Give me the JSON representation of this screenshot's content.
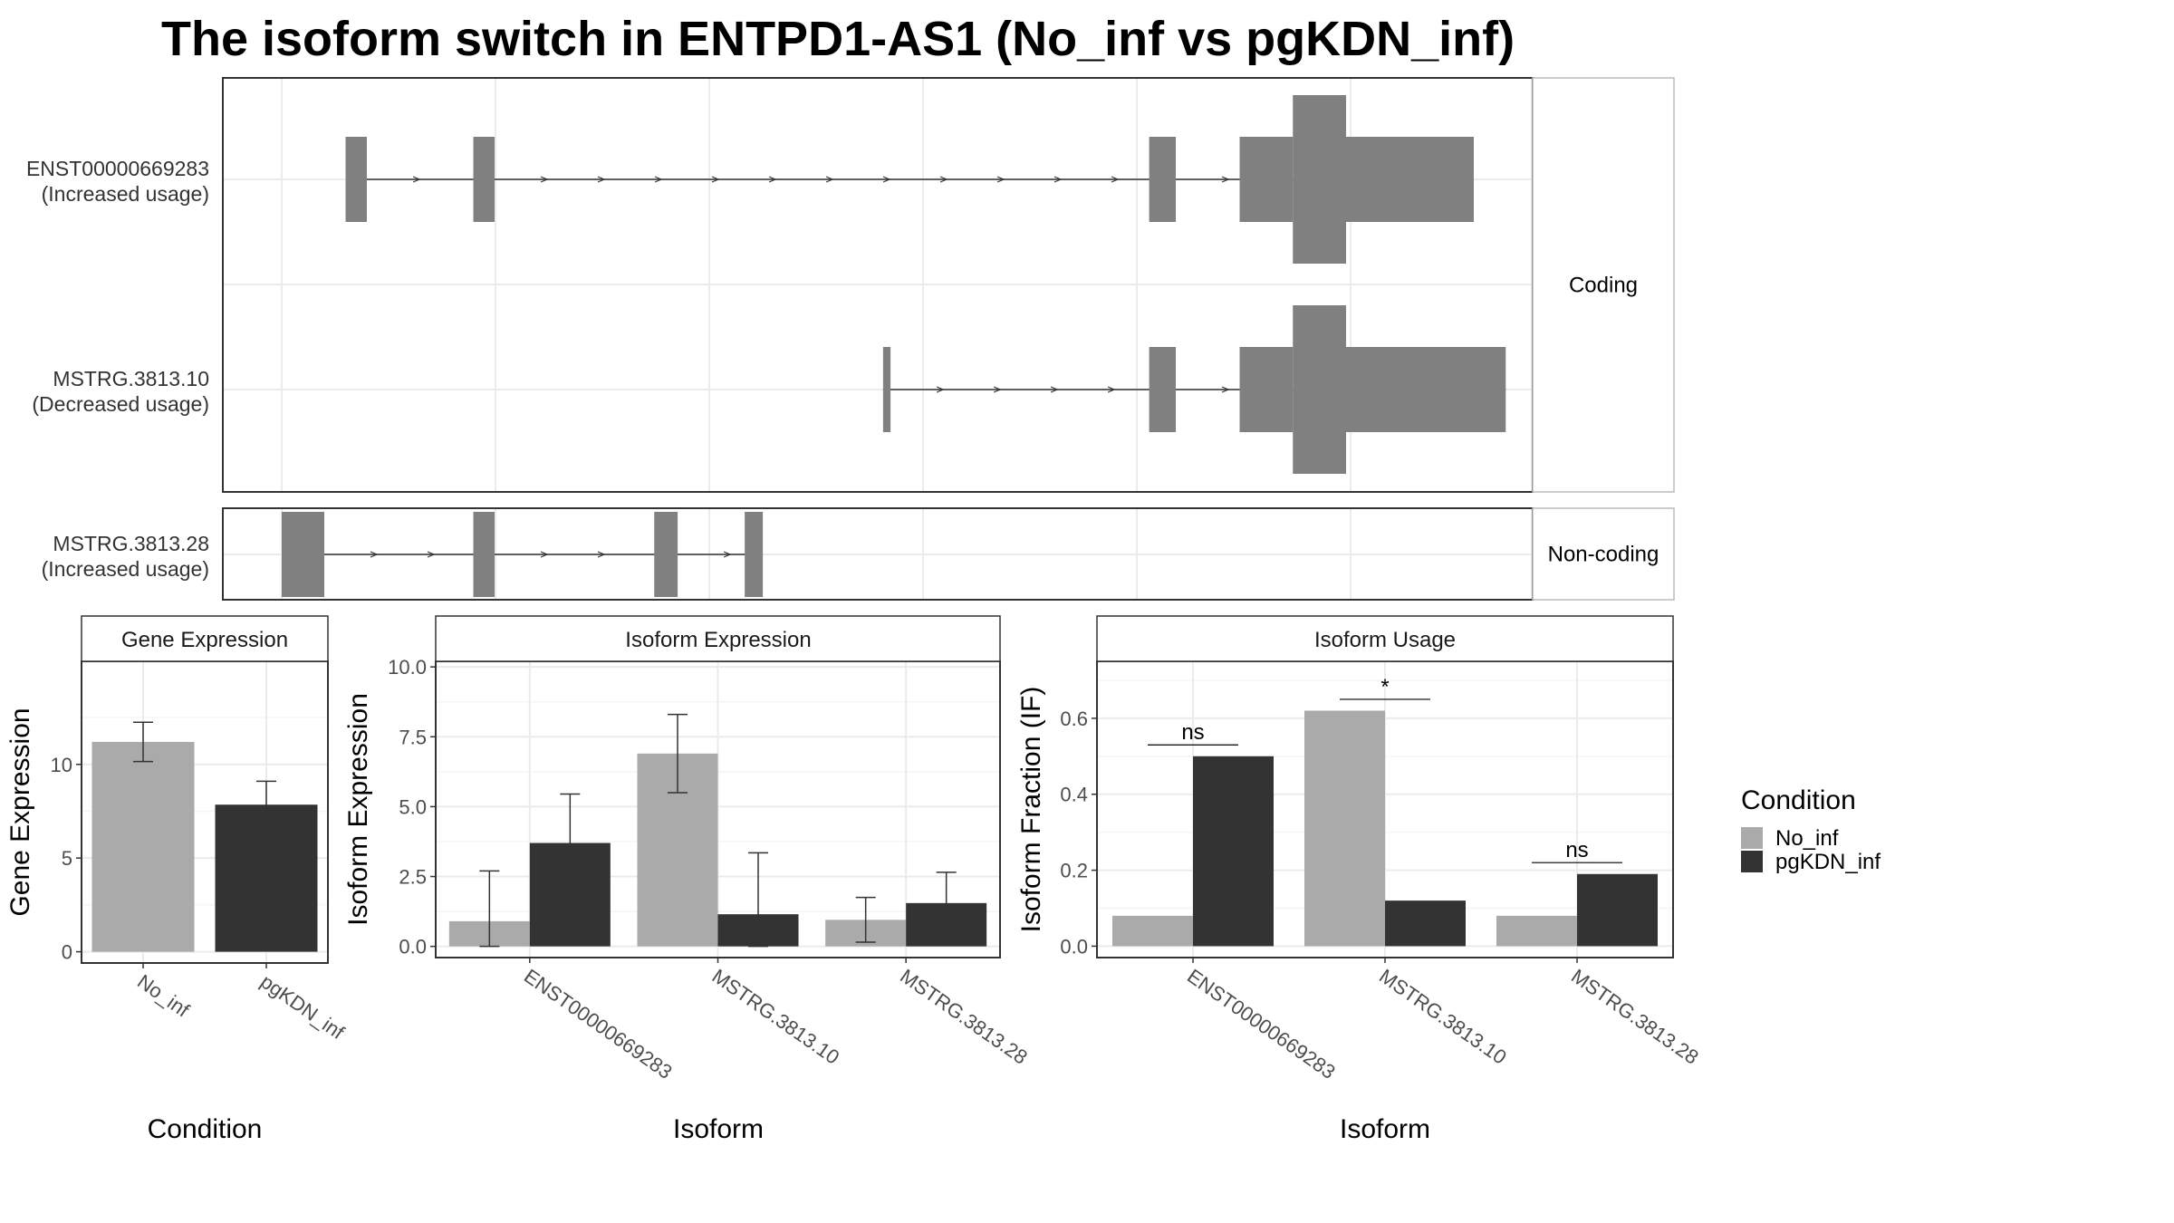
{
  "title": "The isoform switch in ENTPD1-AS1 (No_inf vs pgKDN_inf)",
  "colors": {
    "No_inf": "#aaaaaa",
    "pgKDN_inf": "#333333",
    "exon": "#808080"
  },
  "transcripts": {
    "groups": [
      {
        "facet": "Coding",
        "rows": [
          {
            "id": "ENST00000669283",
            "note": "(Increased usage)",
            "exons": [
              [
                0.06,
                0.08,
                "thin"
              ],
              [
                0.18,
                0.2,
                "thin"
              ],
              [
                0.815,
                0.84,
                "thin"
              ],
              [
                0.9,
                0.95,
                "thin"
              ],
              [
                0.95,
                1.0,
                "thick"
              ],
              [
                1.0,
                1.12,
                "thin"
              ]
            ]
          },
          {
            "id": "MSTRG.3813.10",
            "note": "(Decreased usage)",
            "exons": [
              [
                0.565,
                0.572,
                "thin"
              ],
              [
                0.815,
                0.84,
                "thin"
              ],
              [
                0.9,
                0.95,
                "thin"
              ],
              [
                0.95,
                1.0,
                "thick"
              ],
              [
                1.0,
                1.15,
                "thin"
              ]
            ]
          }
        ]
      },
      {
        "facet": "Non-coding",
        "rows": [
          {
            "id": "MSTRG.3813.28",
            "note": "(Increased usage)",
            "exons": [
              [
                0.0,
                0.04,
                "thin"
              ],
              [
                0.18,
                0.2,
                "thin"
              ],
              [
                0.35,
                0.372,
                "thin"
              ],
              [
                0.435,
                0.452,
                "thin"
              ]
            ]
          }
        ]
      }
    ]
  },
  "chart_data": [
    {
      "type": "bar",
      "title": "Gene Expression",
      "xlabel": "Condition",
      "ylabel": "Gene Expression",
      "categories": [
        "No_inf",
        "pgKDN_inf"
      ],
      "values": [
        11.2,
        7.85
      ],
      "error": [
        [
          10.15,
          12.25
        ],
        [
          6.6,
          9.1
        ]
      ],
      "ylim": [
        -0.6,
        15.5
      ],
      "yticks": [
        0,
        5,
        10
      ],
      "tick_labels": [
        "0",
        "5",
        "10"
      ]
    },
    {
      "type": "bar",
      "title": "Isoform Expression",
      "xlabel": "Isoform",
      "ylabel": "Isoform Expression",
      "categories": [
        "ENST00000669283",
        "MSTRG.3813.10",
        "MSTRG.3813.28"
      ],
      "series": [
        {
          "name": "No_inf",
          "values": [
            0.9,
            6.9,
            0.95
          ],
          "error": [
            [
              0.0,
              2.7
            ],
            [
              5.5,
              8.3
            ],
            [
              0.15,
              1.75
            ]
          ]
        },
        {
          "name": "pgKDN_inf",
          "values": [
            3.7,
            1.15,
            1.55
          ],
          "error": [
            [
              1.9,
              5.45
            ],
            [
              0.0,
              3.35
            ],
            [
              0.45,
              2.65
            ]
          ]
        }
      ],
      "ylim": [
        -0.4,
        10.2
      ],
      "yticks": [
        0,
        2.5,
        5,
        7.5,
        10
      ],
      "tick_labels": [
        "0.0",
        "2.5",
        "5.0",
        "7.5",
        "10.0"
      ]
    },
    {
      "type": "bar",
      "title": "Isoform Usage",
      "xlabel": "Isoform",
      "ylabel": "Isoform Fraction (IF)",
      "categories": [
        "ENST00000669283",
        "MSTRG.3813.10",
        "MSTRG.3813.28"
      ],
      "series": [
        {
          "name": "No_inf",
          "values": [
            0.08,
            0.62,
            0.08
          ]
        },
        {
          "name": "pgKDN_inf",
          "values": [
            0.5,
            0.12,
            0.19
          ]
        }
      ],
      "significance": [
        {
          "label": "ns",
          "y": 0.53
        },
        {
          "label": "*",
          "y": 0.65
        },
        {
          "label": "ns",
          "y": 0.22
        }
      ],
      "ylim": [
        -0.03,
        0.75
      ],
      "yticks": [
        0,
        0.2,
        0.4,
        0.6
      ],
      "tick_labels": [
        "0.0",
        "0.2",
        "0.4",
        "0.6"
      ]
    }
  ],
  "legend": {
    "title": "Condition",
    "items": [
      "No_inf",
      "pgKDN_inf"
    ],
    "position": "right"
  }
}
